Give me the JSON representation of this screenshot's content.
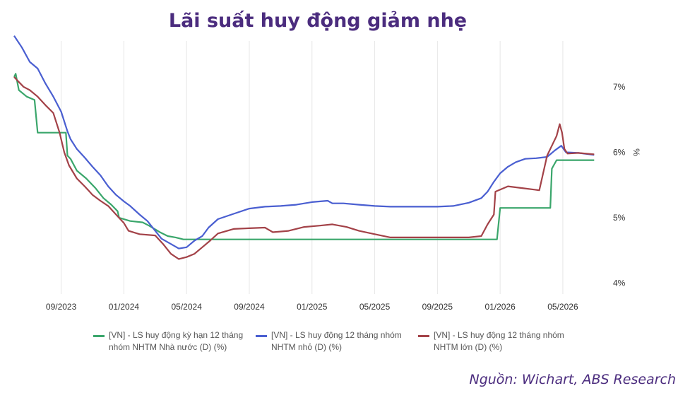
{
  "title": "Lãi suất huy động giảm nhẹ",
  "source": "Nguồn: Wichart, ABS Research",
  "chart_data": {
    "type": "line",
    "title": "Lãi suất huy động giảm nhẹ",
    "xlabel": "",
    "ylabel": "%",
    "ylim": [
      3.9,
      7.7
    ],
    "y_ticks": [
      4,
      5,
      6,
      7
    ],
    "y_tick_labels": [
      "4%",
      "5%",
      "6%",
      "7%"
    ],
    "x_ticks": [
      "09/2023",
      "01/2024",
      "05/2024",
      "09/2024",
      "01/2025",
      "05/2025",
      "09/2025",
      "01/2026",
      "05/2026"
    ],
    "x_tick_months": [
      8,
      12,
      16,
      20,
      24,
      28,
      32,
      36,
      40
    ],
    "xlim_months": [
      5,
      42.3
    ],
    "grid": "vertical",
    "legend_position": "bottom",
    "series": [
      {
        "name": "[VN] - LS huy động kỳ hạn 12 tháng nhóm NHTM Nhà nước (D) (%)",
        "color": "#3aa66b",
        "points": [
          [
            5,
            7.15
          ],
          [
            5.1,
            7.2
          ],
          [
            5.3,
            6.95
          ],
          [
            5.8,
            6.85
          ],
          [
            6.3,
            6.8
          ],
          [
            6.5,
            6.3
          ],
          [
            8.0,
            6.3
          ],
          [
            8.3,
            6.3
          ],
          [
            8.4,
            5.95
          ],
          [
            8.6,
            5.9
          ],
          [
            9.0,
            5.72
          ],
          [
            9.6,
            5.6
          ],
          [
            10.2,
            5.45
          ],
          [
            10.7,
            5.3
          ],
          [
            11.2,
            5.2
          ],
          [
            11.6,
            5.1
          ],
          [
            11.7,
            5.0
          ],
          [
            12.4,
            4.95
          ],
          [
            13.2,
            4.93
          ],
          [
            13.6,
            4.88
          ],
          [
            14.3,
            4.78
          ],
          [
            14.8,
            4.72
          ],
          [
            15.3,
            4.7
          ],
          [
            15.8,
            4.67
          ],
          [
            16.5,
            4.67
          ],
          [
            18,
            4.67
          ],
          [
            22,
            4.67
          ],
          [
            26,
            4.67
          ],
          [
            30,
            4.67
          ],
          [
            33,
            4.67
          ],
          [
            35.8,
            4.67
          ],
          [
            36.0,
            5.15
          ],
          [
            39.2,
            5.15
          ],
          [
            39.3,
            5.75
          ],
          [
            39.6,
            5.88
          ],
          [
            42,
            5.88
          ]
        ]
      },
      {
        "name": "[VN] - LS huy động 12 tháng nhóm NHTM nhỏ (D) (%)",
        "color": "#4a5fd1",
        "points": [
          [
            5,
            7.78
          ],
          [
            5.5,
            7.6
          ],
          [
            6.0,
            7.38
          ],
          [
            6.5,
            7.28
          ],
          [
            7.0,
            7.05
          ],
          [
            7.5,
            6.85
          ],
          [
            8.0,
            6.62
          ],
          [
            8.4,
            6.32
          ],
          [
            8.6,
            6.2
          ],
          [
            9.0,
            6.05
          ],
          [
            9.5,
            5.92
          ],
          [
            10.0,
            5.78
          ],
          [
            10.5,
            5.65
          ],
          [
            11.0,
            5.48
          ],
          [
            11.5,
            5.35
          ],
          [
            12.0,
            5.25
          ],
          [
            12.4,
            5.18
          ],
          [
            13.0,
            5.05
          ],
          [
            13.5,
            4.95
          ],
          [
            14.0,
            4.8
          ],
          [
            14.4,
            4.68
          ],
          [
            15.0,
            4.6
          ],
          [
            15.5,
            4.53
          ],
          [
            16.0,
            4.55
          ],
          [
            16.5,
            4.65
          ],
          [
            17.0,
            4.72
          ],
          [
            17.4,
            4.85
          ],
          [
            18.0,
            4.98
          ],
          [
            19.0,
            5.06
          ],
          [
            20.0,
            5.14
          ],
          [
            21,
            5.17
          ],
          [
            22,
            5.18
          ],
          [
            23,
            5.2
          ],
          [
            24,
            5.24
          ],
          [
            25.0,
            5.26
          ],
          [
            25.3,
            5.22
          ],
          [
            26.0,
            5.22
          ],
          [
            27,
            5.2
          ],
          [
            28,
            5.18
          ],
          [
            29,
            5.17
          ],
          [
            30,
            5.17
          ],
          [
            31,
            5.17
          ],
          [
            32,
            5.17
          ],
          [
            33,
            5.18
          ],
          [
            34.0,
            5.23
          ],
          [
            34.8,
            5.3
          ],
          [
            35.2,
            5.4
          ],
          [
            35.6,
            5.55
          ],
          [
            36.0,
            5.68
          ],
          [
            36.5,
            5.78
          ],
          [
            37.0,
            5.85
          ],
          [
            37.6,
            5.9
          ],
          [
            38.3,
            5.91
          ],
          [
            39.0,
            5.93
          ],
          [
            39.5,
            6.03
          ],
          [
            39.9,
            6.1
          ],
          [
            40.2,
            6.0
          ],
          [
            41,
            5.99
          ],
          [
            42,
            5.96
          ]
        ]
      },
      {
        "name": "[VN] - LS huy động 12 tháng nhóm NHTM lớn (D) (%)",
        "color": "#a34248",
        "points": [
          [
            5,
            7.15
          ],
          [
            5.2,
            7.1
          ],
          [
            5.6,
            7.0
          ],
          [
            6.0,
            6.95
          ],
          [
            6.5,
            6.85
          ],
          [
            7.0,
            6.72
          ],
          [
            7.5,
            6.6
          ],
          [
            7.9,
            6.3
          ],
          [
            8.2,
            6.0
          ],
          [
            8.5,
            5.8
          ],
          [
            9.0,
            5.6
          ],
          [
            9.5,
            5.48
          ],
          [
            10.0,
            5.35
          ],
          [
            10.5,
            5.26
          ],
          [
            11.0,
            5.18
          ],
          [
            11.5,
            5.05
          ],
          [
            12.0,
            4.92
          ],
          [
            12.3,
            4.8
          ],
          [
            13.0,
            4.75
          ],
          [
            14.0,
            4.73
          ],
          [
            14.5,
            4.6
          ],
          [
            15.0,
            4.45
          ],
          [
            15.5,
            4.37
          ],
          [
            16.0,
            4.4
          ],
          [
            16.5,
            4.45
          ],
          [
            17.0,
            4.55
          ],
          [
            17.5,
            4.65
          ],
          [
            18.0,
            4.76
          ],
          [
            19,
            4.83
          ],
          [
            20,
            4.84
          ],
          [
            21,
            4.85
          ],
          [
            21.5,
            4.78
          ],
          [
            22.5,
            4.8
          ],
          [
            23.5,
            4.86
          ],
          [
            24.5,
            4.88
          ],
          [
            25.3,
            4.9
          ],
          [
            26.2,
            4.86
          ],
          [
            27,
            4.8
          ],
          [
            28,
            4.75
          ],
          [
            29,
            4.7
          ],
          [
            30,
            4.7
          ],
          [
            31,
            4.7
          ],
          [
            33,
            4.7
          ],
          [
            34,
            4.7
          ],
          [
            34.8,
            4.72
          ],
          [
            35.2,
            4.9
          ],
          [
            35.6,
            5.05
          ],
          [
            35.7,
            5.4
          ],
          [
            36.5,
            5.48
          ],
          [
            37.5,
            5.45
          ],
          [
            38.2,
            5.43
          ],
          [
            38.5,
            5.42
          ],
          [
            39.0,
            5.95
          ],
          [
            39.3,
            6.1
          ],
          [
            39.6,
            6.25
          ],
          [
            39.8,
            6.43
          ],
          [
            39.95,
            6.3
          ],
          [
            40.1,
            6.05
          ],
          [
            40.3,
            5.98
          ],
          [
            41,
            5.99
          ],
          [
            42,
            5.97
          ]
        ]
      }
    ]
  }
}
